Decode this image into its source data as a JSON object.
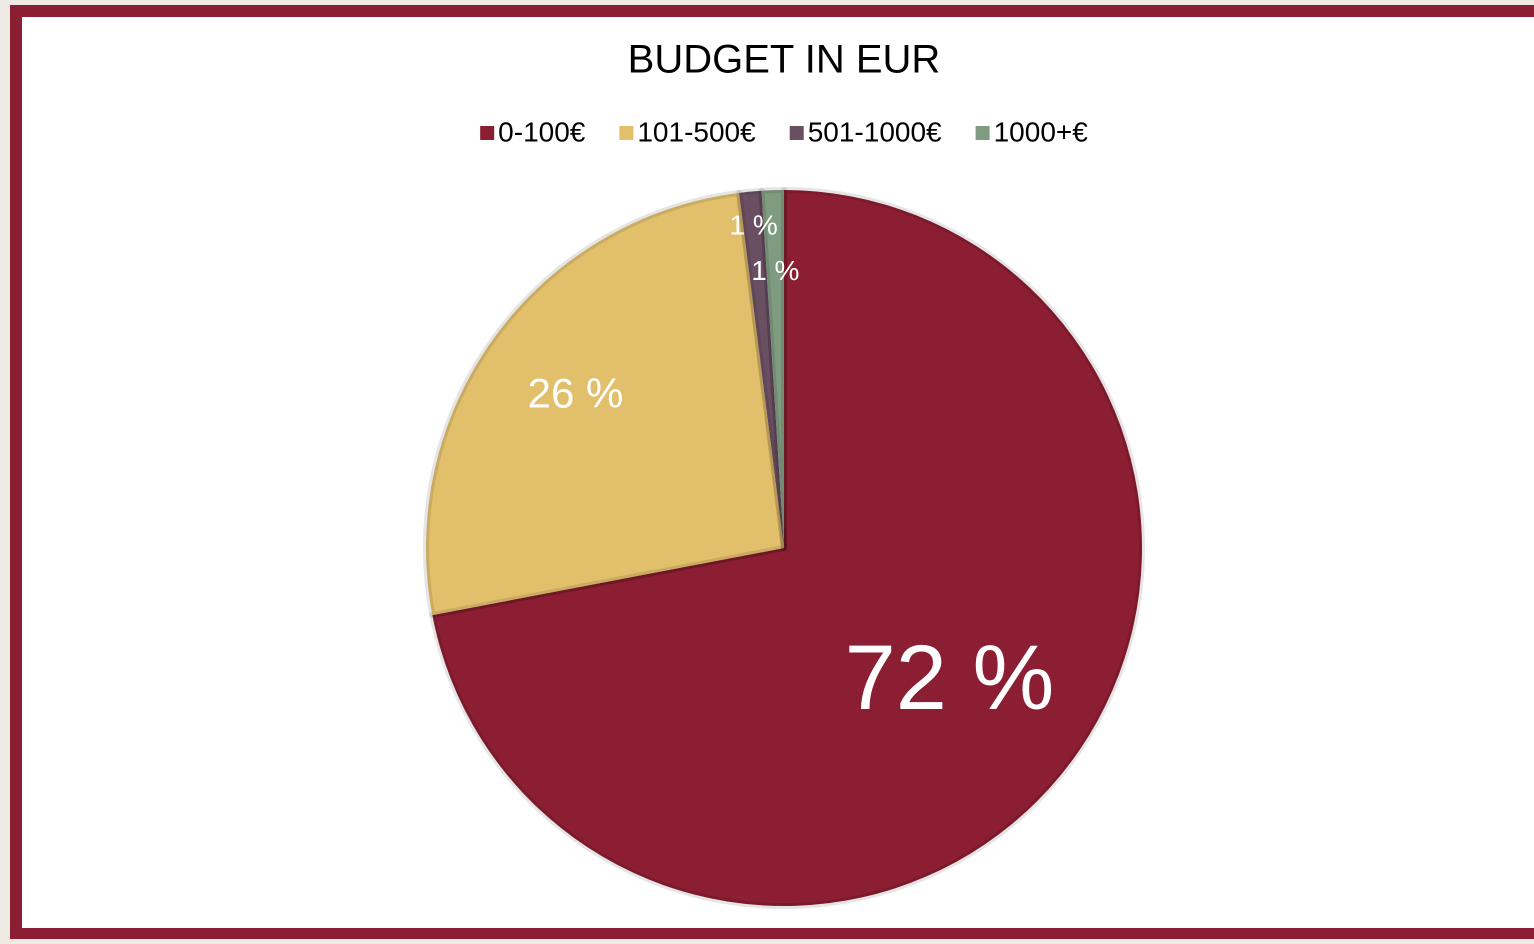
{
  "chart_data": {
    "type": "pie",
    "title": "BUDGET IN EUR",
    "categories": [
      "0-100€",
      "101-500€",
      "501-1000€",
      "1000+€"
    ],
    "values": [
      72,
      26,
      1,
      1
    ],
    "value_labels": [
      "72 %",
      "26 %",
      "1 %",
      "1 %"
    ],
    "colors": [
      "#8b1e32",
      "#e2bf6a",
      "#6a4f63",
      "#7f9b80"
    ],
    "legend": "top"
  }
}
